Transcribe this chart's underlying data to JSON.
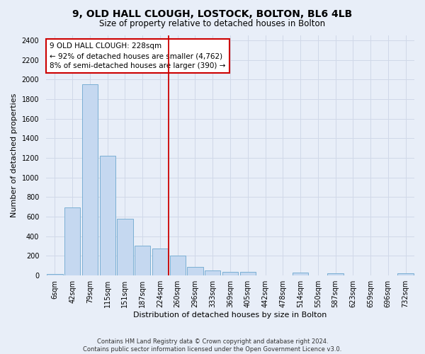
{
  "title": "9, OLD HALL CLOUGH, LOSTOCK, BOLTON, BL6 4LB",
  "subtitle": "Size of property relative to detached houses in Bolton",
  "xlabel": "Distribution of detached houses by size in Bolton",
  "ylabel": "Number of detached properties",
  "footer_line1": "Contains HM Land Registry data © Crown copyright and database right 2024.",
  "footer_line2": "Contains public sector information licensed under the Open Government Licence v3.0.",
  "annotation_title": "9 OLD HALL CLOUGH: 228sqm",
  "annotation_line1": "← 92% of detached houses are smaller (4,762)",
  "annotation_line2": "8% of semi-detached houses are larger (390) →",
  "bar_labels": [
    "6sqm",
    "42sqm",
    "79sqm",
    "115sqm",
    "151sqm",
    "187sqm",
    "224sqm",
    "260sqm",
    "296sqm",
    "333sqm",
    "369sqm",
    "405sqm",
    "442sqm",
    "478sqm",
    "514sqm",
    "550sqm",
    "587sqm",
    "623sqm",
    "659sqm",
    "696sqm",
    "732sqm"
  ],
  "bar_values": [
    15,
    690,
    1950,
    1220,
    575,
    305,
    275,
    200,
    85,
    48,
    38,
    35,
    0,
    0,
    25,
    0,
    20,
    0,
    0,
    0,
    20
  ],
  "bar_color": "#c5d8f0",
  "bar_edge_color": "#7bafd4",
  "vline_color": "#cc0000",
  "vline_bin_index": 6,
  "annotation_box_color": "#cc0000",
  "annotation_bg_color": "#ffffff",
  "grid_color": "#d0d8e8",
  "background_color": "#e8eef8",
  "ylim": [
    0,
    2450
  ],
  "yticks": [
    0,
    200,
    400,
    600,
    800,
    1000,
    1200,
    1400,
    1600,
    1800,
    2000,
    2200,
    2400
  ],
  "title_fontsize": 10,
  "subtitle_fontsize": 8.5,
  "ylabel_fontsize": 8,
  "xlabel_fontsize": 8,
  "tick_fontsize": 7,
  "annotation_fontsize": 7.5,
  "footer_fontsize": 6
}
